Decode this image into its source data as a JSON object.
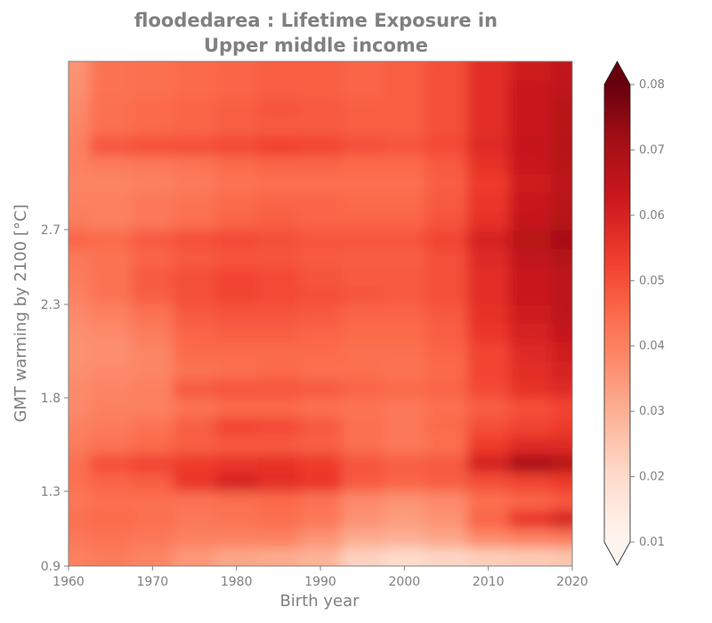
{
  "chart_data": {
    "type": "heatmap",
    "title_lines": [
      "floodedarea : Lifetime Exposure in",
      "Upper middle income"
    ],
    "xlabel": "Birth year",
    "ylabel": "GMT warming by 2100 [°C]",
    "xlim": [
      1960,
      2020
    ],
    "ylim": [
      0.9,
      3.6
    ],
    "x_ticks": [
      1960,
      1970,
      1980,
      1990,
      2000,
      2010,
      2020
    ],
    "x_tick_labels": [
      "1960",
      "1970",
      "1980",
      "1990",
      "2000",
      "2010",
      "2020"
    ],
    "y_ticks": [
      0.9,
      1.3,
      1.8,
      2.3,
      2.7
    ],
    "y_tick_labels": [
      "0.9",
      "1.3",
      "1.8",
      "2.3",
      "2.7"
    ],
    "colorbar": {
      "colormap": "Reds",
      "vmin": 0.01,
      "vmax": 0.08,
      "extend": "both",
      "ticks": [
        0.01,
        0.02,
        0.03,
        0.04,
        0.05,
        0.06,
        0.07,
        0.08
      ],
      "tick_labels": [
        "0.01",
        "0.02",
        "0.03",
        "0.04",
        "0.05",
        "0.06",
        "0.07",
        "0.08"
      ]
    },
    "grid": false,
    "x": [
      1960,
      1965,
      1970,
      1975,
      1980,
      1985,
      1990,
      1995,
      2000,
      2005,
      2010,
      2015,
      2020
    ],
    "y": [
      0.95,
      1.05,
      1.15,
      1.25,
      1.35,
      1.45,
      1.55,
      1.65,
      1.75,
      1.85,
      1.95,
      2.05,
      2.15,
      2.25,
      2.35,
      2.45,
      2.55,
      2.65,
      2.75,
      2.85,
      2.95,
      3.05,
      3.15,
      3.25,
      3.35,
      3.45,
      3.55
    ],
    "z": [
      [
        0.04,
        0.041,
        0.039,
        0.035,
        0.032,
        0.031,
        0.029,
        0.022,
        0.02,
        0.021,
        0.023,
        0.024,
        0.025
      ],
      [
        0.042,
        0.043,
        0.042,
        0.04,
        0.04,
        0.04,
        0.036,
        0.031,
        0.03,
        0.032,
        0.038,
        0.04,
        0.041
      ],
      [
        0.044,
        0.045,
        0.044,
        0.042,
        0.043,
        0.044,
        0.042,
        0.036,
        0.034,
        0.036,
        0.046,
        0.055,
        0.06
      ],
      [
        0.042,
        0.044,
        0.044,
        0.043,
        0.044,
        0.045,
        0.043,
        0.038,
        0.036,
        0.038,
        0.044,
        0.046,
        0.048
      ],
      [
        0.044,
        0.046,
        0.047,
        0.055,
        0.06,
        0.057,
        0.055,
        0.048,
        0.046,
        0.047,
        0.05,
        0.052,
        0.054
      ],
      [
        0.044,
        0.05,
        0.052,
        0.054,
        0.055,
        0.056,
        0.054,
        0.049,
        0.047,
        0.048,
        0.06,
        0.07,
        0.068
      ],
      [
        0.041,
        0.043,
        0.045,
        0.047,
        0.048,
        0.048,
        0.047,
        0.044,
        0.042,
        0.044,
        0.054,
        0.058,
        0.058
      ],
      [
        0.04,
        0.041,
        0.043,
        0.047,
        0.052,
        0.051,
        0.048,
        0.044,
        0.042,
        0.045,
        0.05,
        0.052,
        0.054
      ],
      [
        0.038,
        0.04,
        0.04,
        0.043,
        0.045,
        0.045,
        0.044,
        0.043,
        0.042,
        0.044,
        0.047,
        0.05,
        0.052
      ],
      [
        0.038,
        0.039,
        0.04,
        0.048,
        0.049,
        0.049,
        0.048,
        0.046,
        0.045,
        0.046,
        0.051,
        0.056,
        0.058
      ],
      [
        0.037,
        0.038,
        0.039,
        0.043,
        0.044,
        0.045,
        0.044,
        0.044,
        0.043,
        0.045,
        0.052,
        0.057,
        0.06
      ],
      [
        0.036,
        0.037,
        0.039,
        0.045,
        0.045,
        0.045,
        0.045,
        0.044,
        0.044,
        0.046,
        0.052,
        0.058,
        0.062
      ],
      [
        0.037,
        0.038,
        0.041,
        0.046,
        0.047,
        0.047,
        0.046,
        0.045,
        0.045,
        0.047,
        0.055,
        0.06,
        0.064
      ],
      [
        0.038,
        0.04,
        0.043,
        0.048,
        0.049,
        0.049,
        0.048,
        0.046,
        0.046,
        0.048,
        0.056,
        0.062,
        0.066
      ],
      [
        0.04,
        0.043,
        0.047,
        0.05,
        0.052,
        0.051,
        0.05,
        0.049,
        0.048,
        0.05,
        0.057,
        0.063,
        0.066
      ],
      [
        0.041,
        0.043,
        0.048,
        0.05,
        0.052,
        0.051,
        0.049,
        0.048,
        0.048,
        0.05,
        0.057,
        0.063,
        0.066
      ],
      [
        0.042,
        0.043,
        0.046,
        0.048,
        0.049,
        0.049,
        0.048,
        0.047,
        0.047,
        0.05,
        0.058,
        0.065,
        0.068
      ],
      [
        0.046,
        0.045,
        0.048,
        0.05,
        0.051,
        0.05,
        0.049,
        0.049,
        0.049,
        0.052,
        0.06,
        0.067,
        0.071
      ],
      [
        0.041,
        0.04,
        0.042,
        0.044,
        0.046,
        0.047,
        0.046,
        0.046,
        0.046,
        0.049,
        0.056,
        0.064,
        0.068
      ],
      [
        0.04,
        0.04,
        0.042,
        0.043,
        0.045,
        0.046,
        0.046,
        0.045,
        0.045,
        0.048,
        0.055,
        0.063,
        0.067
      ],
      [
        0.039,
        0.039,
        0.04,
        0.041,
        0.043,
        0.044,
        0.044,
        0.044,
        0.044,
        0.047,
        0.054,
        0.062,
        0.066
      ],
      [
        0.04,
        0.041,
        0.042,
        0.043,
        0.045,
        0.046,
        0.046,
        0.045,
        0.045,
        0.048,
        0.056,
        0.063,
        0.067
      ],
      [
        0.04,
        0.049,
        0.05,
        0.05,
        0.051,
        0.053,
        0.052,
        0.05,
        0.049,
        0.051,
        0.058,
        0.064,
        0.068
      ],
      [
        0.039,
        0.044,
        0.045,
        0.046,
        0.047,
        0.048,
        0.048,
        0.047,
        0.047,
        0.05,
        0.057,
        0.063,
        0.067
      ],
      [
        0.038,
        0.044,
        0.045,
        0.046,
        0.047,
        0.049,
        0.048,
        0.047,
        0.047,
        0.05,
        0.057,
        0.063,
        0.067
      ],
      [
        0.037,
        0.043,
        0.044,
        0.045,
        0.046,
        0.047,
        0.047,
        0.046,
        0.047,
        0.05,
        0.057,
        0.063,
        0.066
      ],
      [
        0.036,
        0.043,
        0.044,
        0.045,
        0.046,
        0.047,
        0.047,
        0.046,
        0.047,
        0.05,
        0.057,
        0.062,
        0.065
      ]
    ]
  }
}
